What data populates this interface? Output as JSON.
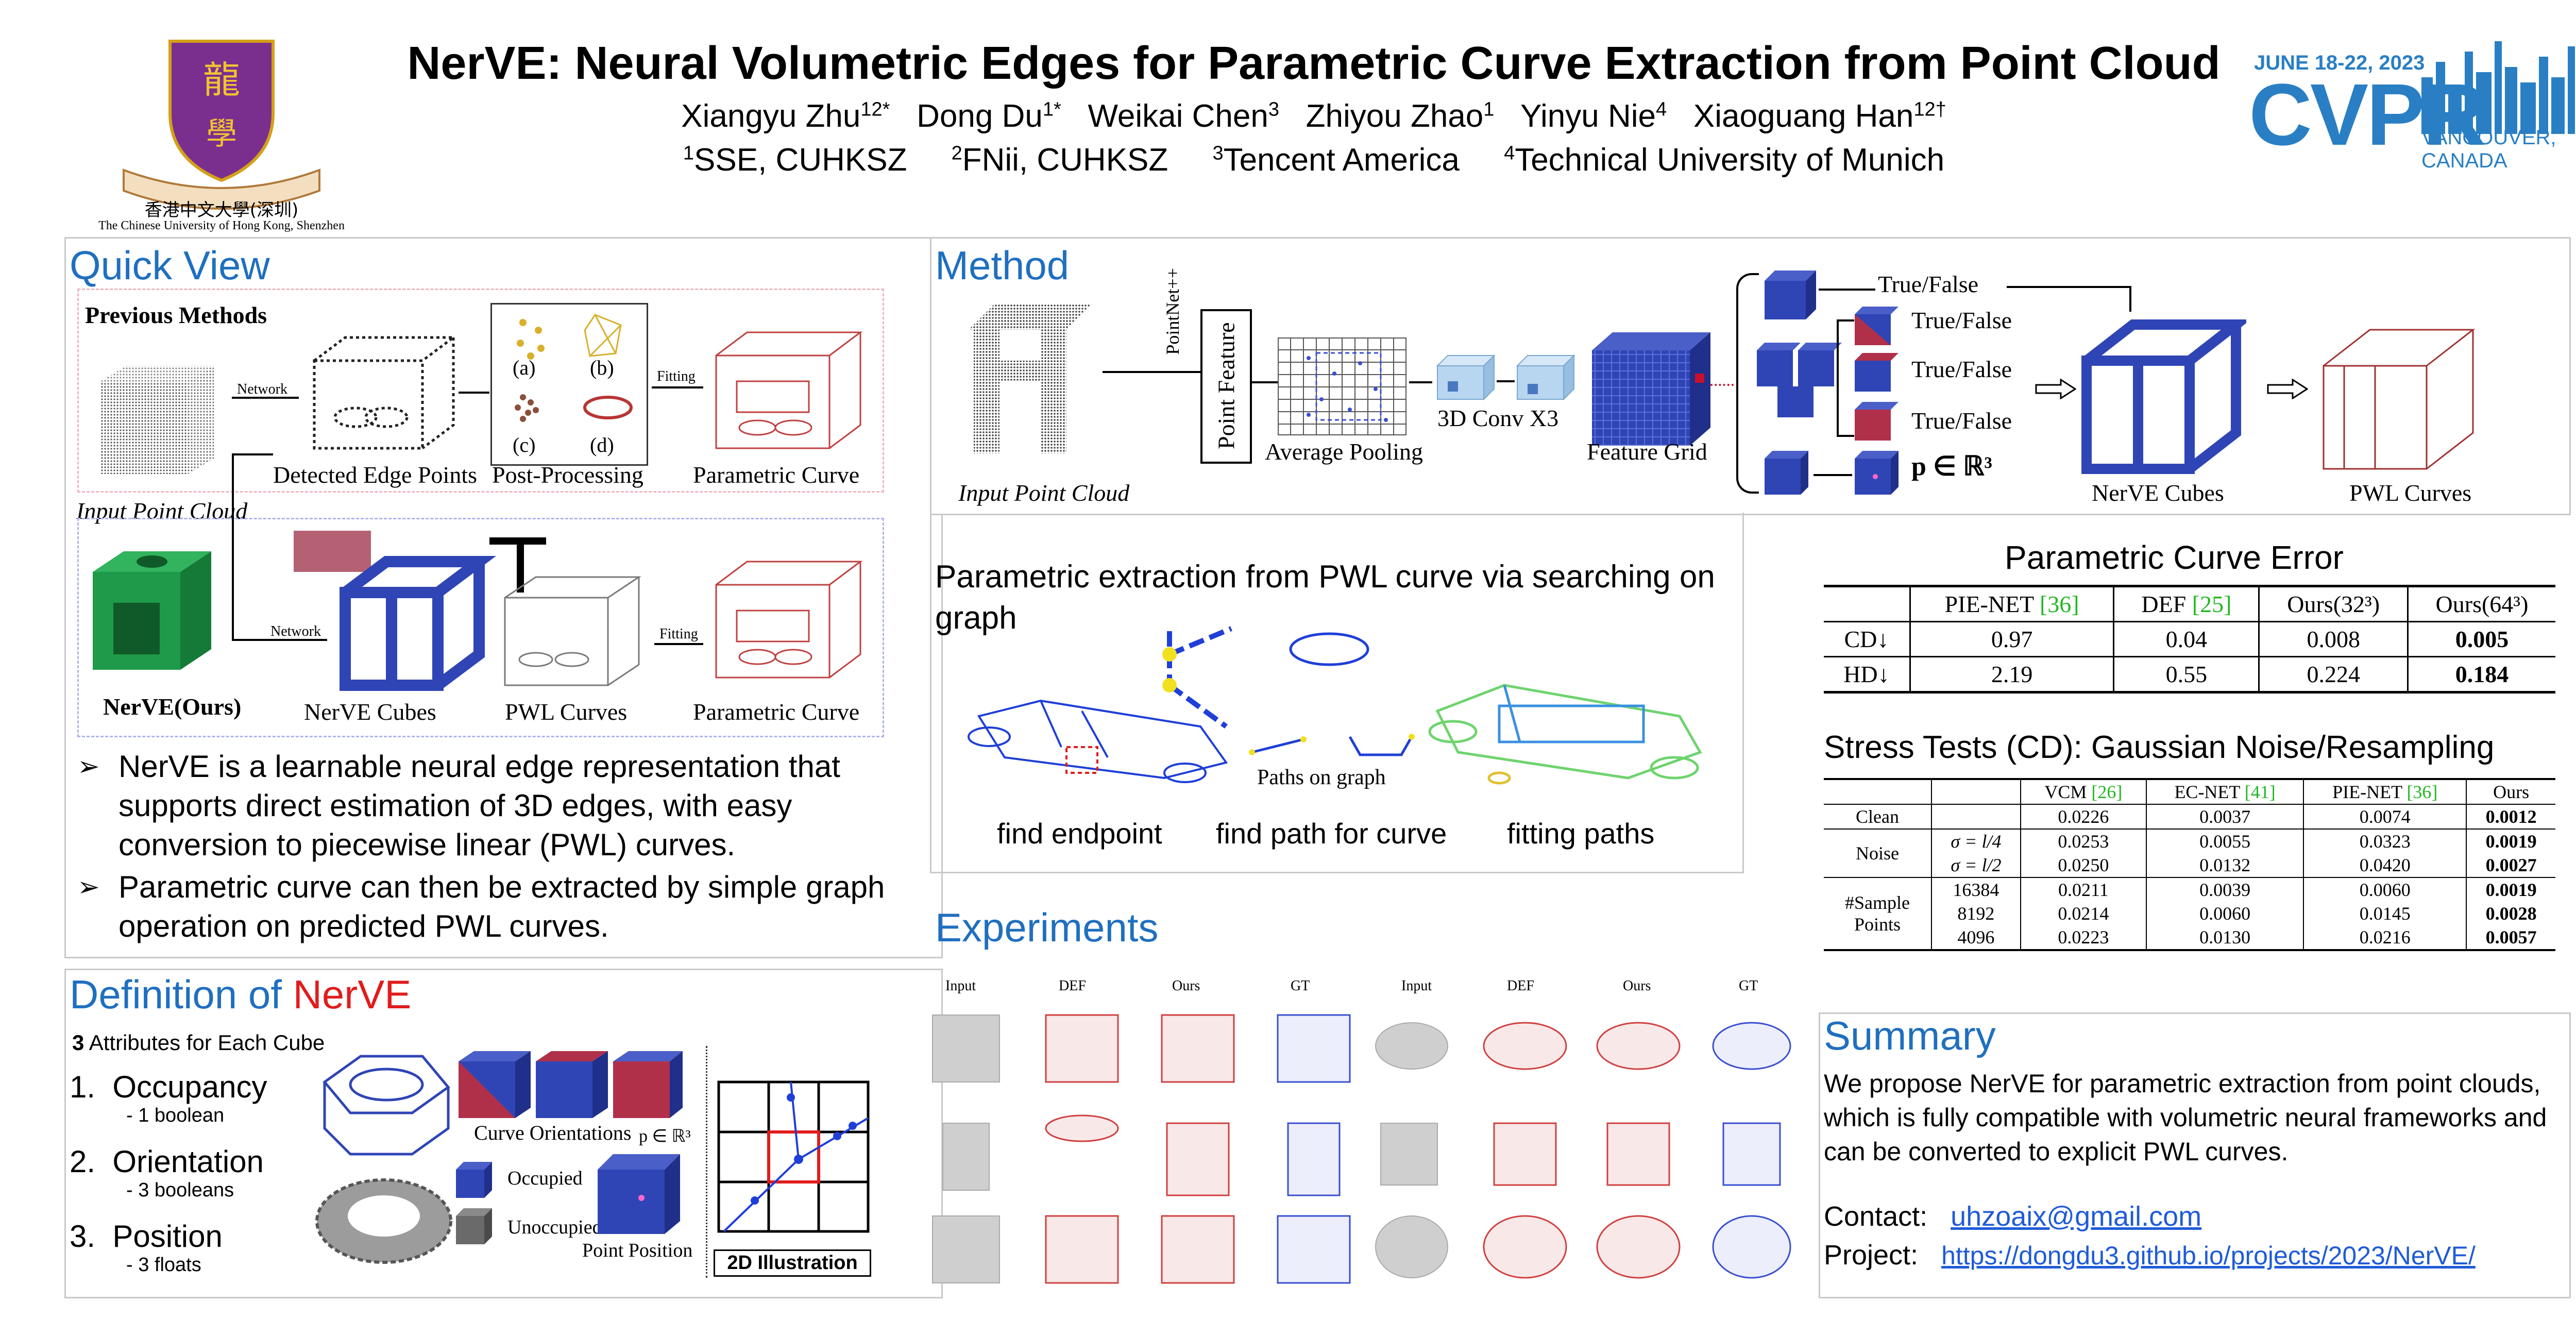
{
  "header": {
    "title": "NerVE: Neural Volumetric Edges for Parametric Curve Extraction from Point Cloud",
    "authors": [
      {
        "name": "Xiangyu Zhu",
        "sup": "12*"
      },
      {
        "name": "Dong Du",
        "sup": "1*"
      },
      {
        "name": "Weikai Chen",
        "sup": "3"
      },
      {
        "name": "Zhiyou Zhao",
        "sup": "1"
      },
      {
        "name": "Yinyu Nie",
        "sup": "4"
      },
      {
        "name": "Xiaoguang Han",
        "sup": "12†"
      }
    ],
    "affiliations": [
      {
        "sup": "1",
        "name": "SSE, CUHKSZ"
      },
      {
        "sup": "2",
        "name": "FNii, CUHKSZ"
      },
      {
        "sup": "3",
        "name": "Tencent America"
      },
      {
        "sup": "4",
        "name": "Technical University of Munich"
      }
    ],
    "university_cn": "香港中文大學(深圳)",
    "university_en": "The Chinese University of Hong Kong, Shenzhen",
    "conf_date": "JUNE 18-22, 2023",
    "conf_name": "CVPR",
    "conf_place": "VANCOUVER, CANADA"
  },
  "colors": {
    "accent_blue": "#1f6fbf",
    "red": "#e11c1c",
    "green": "#22b822",
    "cube_blue": "#2f45b5",
    "curve_red": "#c04040"
  },
  "quick_view": {
    "title": "Quick View",
    "previous_methods": "Previous Methods",
    "network": "Network",
    "fitting": "Fitting",
    "input_point_cloud": "Input Point Cloud",
    "detected_edge_points": "Detected Edge Points",
    "post_processing": "Post-Processing",
    "parametric_curve": "Parametric Curve",
    "pp_labels": [
      "(a)",
      "(b)",
      "(c)",
      "(d)"
    ],
    "nerve_ours": "NerVE(Ours)",
    "nerve_cubes": "NerVE Cubes",
    "pwl_curves": "PWL Curves",
    "bullets": [
      "NerVE is a learnable neural edge representation that supports direct estimation of 3D edges, with easy conversion to piecewise linear (PWL) curves.",
      "Parametric curve can then be extracted by simple graph operation on predicted PWL curves."
    ]
  },
  "definition": {
    "title_prefix": "Definition of ",
    "title_highlight": "NerVE",
    "attributes_count": "3",
    "attributes_text": " Attributes for Each Cube",
    "items": [
      {
        "num": "1.",
        "name": "Occupancy",
        "detail": "- 1 boolean"
      },
      {
        "num": "2.",
        "name": "Orientation",
        "detail": "- 3 booleans"
      },
      {
        "num": "3.",
        "name": "Position",
        "detail": "- 3 floats"
      }
    ],
    "curve_orientations": "Curve Orientations",
    "occupied": "Occupied",
    "unoccupied": "Unoccupied",
    "point_position": "Point Position",
    "p_symbol": "p ∈ ℝ³",
    "illustration": "2D Illustration"
  },
  "method": {
    "title": "Method",
    "input_point_cloud": "Input Point Cloud",
    "pointnet": "PointNet++",
    "point_feature": "Point Feature",
    "average_pooling": "Average Pooling",
    "conv": "3D Conv X3",
    "feature_grid": "Feature Grid",
    "true_false": "True/False",
    "p_symbol": "p ∈ ℝ³",
    "nerve_cubes": "NerVE Cubes",
    "pwl_curves": "PWL Curves",
    "param_title": "Parametric extraction from PWL curve via searching on graph",
    "paths_on_graph": "Paths on graph",
    "steps": [
      "find endpoint",
      "find path for curve",
      "fitting paths"
    ]
  },
  "param_error": {
    "title": "Parametric Curve Error",
    "columns": [
      {
        "name": "PIE-NET ",
        "ref": "[36]"
      },
      {
        "name": "DEF ",
        "ref": "[25]"
      },
      {
        "name": "Ours(32³)",
        "ref": ""
      },
      {
        "name": "Ours(64³)",
        "ref": ""
      }
    ],
    "rows": [
      {
        "metric": "CD↓",
        "values": [
          "0.97",
          "0.04",
          "0.008",
          "0.005"
        ]
      },
      {
        "metric": "HD↓",
        "values": [
          "2.19",
          "0.55",
          "0.224",
          "0.184"
        ]
      }
    ]
  },
  "stress": {
    "title": "Stress Tests (CD): Gaussian Noise/Resampling",
    "columns": [
      {
        "name": "VCM ",
        "ref": "[26]"
      },
      {
        "name": "EC-NET ",
        "ref": "[41]"
      },
      {
        "name": "PIE-NET ",
        "ref": "[36]"
      },
      {
        "name": "Ours",
        "ref": ""
      }
    ],
    "clean": {
      "label": "Clean",
      "values": [
        "0.0226",
        "0.0037",
        "0.0074",
        "0.0012"
      ]
    },
    "noise": {
      "label": "Noise",
      "rows": [
        {
          "param": "σ = l/4",
          "values": [
            "0.0253",
            "0.0055",
            "0.0323",
            "0.0019"
          ]
        },
        {
          "param": "σ = l/2",
          "values": [
            "0.0250",
            "0.0132",
            "0.0420",
            "0.0027"
          ]
        }
      ]
    },
    "sample": {
      "label_line1": "#Sample",
      "label_line2": "Points",
      "rows": [
        {
          "param": "16384",
          "values": [
            "0.0211",
            "0.0039",
            "0.0060",
            "0.0019"
          ]
        },
        {
          "param": "8192",
          "values": [
            "0.0214",
            "0.0060",
            "0.0145",
            "0.0028"
          ]
        },
        {
          "param": "4096",
          "values": [
            "0.0223",
            "0.0130",
            "0.0216",
            "0.0057"
          ]
        }
      ]
    }
  },
  "experiments": {
    "title": "Experiments",
    "columns": [
      "Input",
      "DEF",
      "Ours",
      "GT",
      "Input",
      "DEF",
      "Ours",
      "GT"
    ]
  },
  "summary": {
    "title": "Summary",
    "text": "We propose NerVE for parametric extraction from point clouds, which is fully compatible with volumetric neural frameworks and can be converted to explicit PWL curves.",
    "contact_label": "Contact:",
    "contact_email": "uhzoaix@gmail.com",
    "project_label": "Project:",
    "project_url": "https://dongdu3.github.io/projects/2023/NerVE/"
  }
}
